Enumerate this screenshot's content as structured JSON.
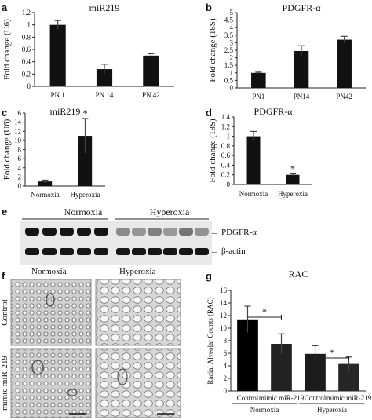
{
  "panels": {
    "a": "a",
    "b": "b",
    "c": "c",
    "d": "d",
    "e": "e",
    "f": "f",
    "g": "g"
  },
  "chart_data": [
    {
      "id": "a",
      "type": "bar",
      "title": "miR219",
      "ylabel": "Fold change (U6)",
      "categories": [
        "PN 1",
        "PN 14",
        "PN 42"
      ],
      "values": [
        1.0,
        0.28,
        0.5
      ],
      "errors": [
        0.07,
        0.08,
        0.03
      ],
      "ylim": [
        0,
        1.2
      ],
      "yticks": [
        "0",
        "0.2",
        "0.4",
        "0.6",
        "0.8",
        "1",
        "1.2"
      ],
      "color": "#111111"
    },
    {
      "id": "b",
      "type": "bar",
      "title": "PDGFR-α",
      "ylabel": "Fold change (18S)",
      "categories": [
        "PN1",
        "PN14",
        "PN42"
      ],
      "values": [
        1.0,
        2.45,
        3.2
      ],
      "errors": [
        0.05,
        0.35,
        0.22
      ],
      "ylim": [
        0,
        5
      ],
      "yticks": [
        "0",
        "0.5",
        "1",
        "1.5",
        "2",
        "2.5",
        "3",
        "3.5",
        "4",
        "4.5",
        "5"
      ],
      "color": "#111111"
    },
    {
      "id": "c",
      "type": "bar",
      "title": "miR219",
      "ylabel": "Fold change (U6)",
      "categories": [
        "Normoxia",
        "Hyperoxia"
      ],
      "values": [
        1.0,
        11.0
      ],
      "errors": [
        0.3,
        3.8
      ],
      "ylim": [
        0,
        16
      ],
      "yticks": [
        "0",
        "2",
        "4",
        "6",
        "8",
        "10",
        "12",
        "14",
        "16"
      ],
      "significance": [
        "",
        "*"
      ],
      "color": "#111111"
    },
    {
      "id": "d",
      "type": "bar",
      "title": "PDGFR-α",
      "ylabel": "Fold change (18S)",
      "categories": [
        "Normoxia",
        "Hyperoxia"
      ],
      "values": [
        1.0,
        0.2
      ],
      "errors": [
        0.1,
        0.02
      ],
      "ylim": [
        0,
        1.4
      ],
      "yticks": [
        "0",
        "0.2",
        "0.4",
        "0.6",
        "0.8",
        "1",
        "1.2",
        "1.4"
      ],
      "significance": [
        "",
        "*"
      ],
      "color": "#111111"
    },
    {
      "id": "g",
      "type": "bar",
      "title": "RAC",
      "ylabel": "Radial Alveolar Counts (RAC)",
      "categories": [
        "Control",
        "mimic miR-219",
        "Control",
        "mimic miR-219"
      ],
      "groups": [
        "Normoxia",
        "Hyperoxia"
      ],
      "values": [
        11.4,
        7.5,
        5.9,
        4.3
      ],
      "errors": [
        2.1,
        1.6,
        1.3,
        1.1
      ],
      "colors": [
        "#000000",
        "#222222",
        "#1c1c1c",
        "#262626"
      ],
      "ylim": [
        0,
        16
      ],
      "yticks": [
        "0",
        "2",
        "4",
        "6",
        "8",
        "10",
        "12",
        "14",
        "16"
      ],
      "significance": [
        "*",
        "*"
      ]
    }
  ],
  "western_blot": {
    "groups": [
      "Normoxia",
      "Hyperoxia"
    ],
    "bands": [
      "PDGFR-α",
      "β-actin"
    ],
    "normoxia_intensity": [
      1.0,
      1.0,
      1.0,
      1.0,
      1.0
    ],
    "hyperoxia_intensity": [
      0.45,
      0.4,
      0.5,
      0.38,
      0.55,
      0.42
    ]
  },
  "histology": {
    "columns": [
      "Normoxia",
      "Hyperoxia"
    ],
    "rows": [
      "Control",
      "mimic miR-219"
    ]
  }
}
